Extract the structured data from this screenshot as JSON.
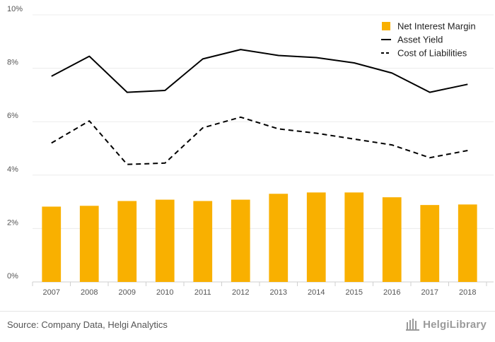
{
  "chart_data": {
    "type": "bar+line",
    "categories": [
      "2007",
      "2008",
      "2009",
      "2010",
      "2011",
      "2012",
      "2013",
      "2014",
      "2015",
      "2016",
      "2017",
      "2018"
    ],
    "series": [
      {
        "name": "Net Interest Margin",
        "kind": "bar",
        "color": "#f9b000",
        "values": [
          2.82,
          2.85,
          3.03,
          3.08,
          3.03,
          3.08,
          3.3,
          3.35,
          3.35,
          3.17,
          2.88,
          2.9
        ]
      },
      {
        "name": "Asset Yield",
        "kind": "line",
        "style": "solid",
        "color": "#000000",
        "values": [
          7.7,
          8.45,
          7.1,
          7.17,
          8.35,
          8.7,
          8.48,
          8.4,
          8.2,
          7.82,
          7.1,
          7.4
        ]
      },
      {
        "name": "Cost of Liabilities",
        "kind": "line",
        "style": "dashed",
        "color": "#000000",
        "values": [
          5.2,
          6.03,
          4.4,
          4.45,
          5.77,
          6.17,
          5.73,
          5.57,
          5.35,
          5.13,
          4.65,
          4.92
        ]
      }
    ],
    "yticks": [
      "0%",
      "2%",
      "4%",
      "6%",
      "8%",
      "10%"
    ],
    "ylim": [
      0,
      10
    ],
    "grid": true,
    "legend": "top-right"
  },
  "footer": {
    "source": "Source: Company Data, Helgi Analytics",
    "brand": "HelgiLibrary"
  }
}
